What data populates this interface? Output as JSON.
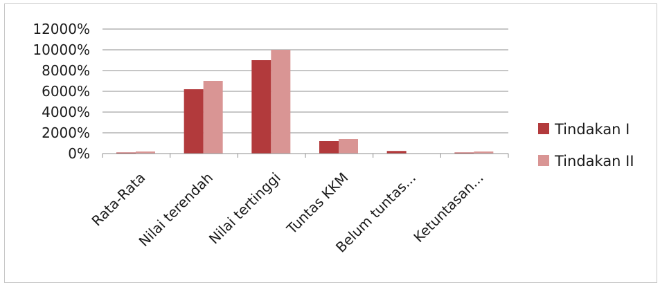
{
  "chart_data": {
    "type": "bar",
    "categories": [
      "Rata-Rata",
      "Nilai terendah",
      "Nilai tertinggi",
      "Tuntas KKM",
      "Belum tuntas...",
      "Ketuntasan..."
    ],
    "series": [
      {
        "name": "Tindakan I",
        "color": "#b23a3c",
        "values": [
          100,
          6200,
          9000,
          1200,
          250,
          100
        ]
      },
      {
        "name": "Tindakan II",
        "color": "#d99594",
        "values": [
          200,
          7000,
          10000,
          1400,
          0,
          200
        ]
      }
    ],
    "y_ticks": [
      "0%",
      "2000%",
      "4000%",
      "6000%",
      "8000%",
      "10000%",
      "12000%"
    ],
    "ylim": [
      0,
      12000
    ],
    "grid": true,
    "legend_position": "right"
  }
}
